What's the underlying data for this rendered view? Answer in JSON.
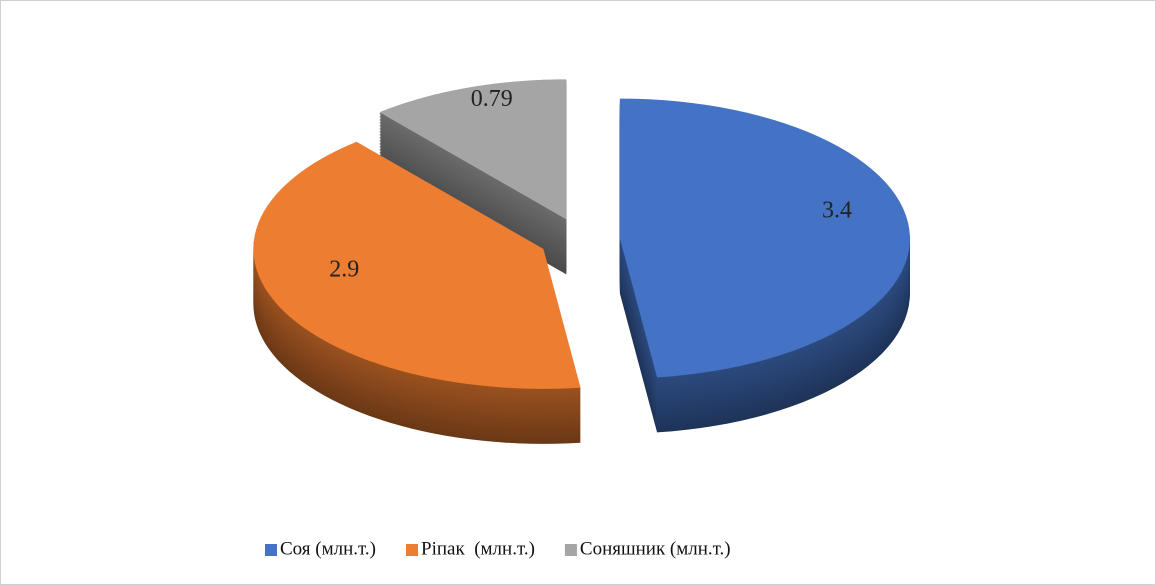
{
  "chart_data": {
    "type": "pie",
    "categories": [
      "Соя (млн.т.)",
      "Ріпак  (млн.т.)",
      "Соняшник (млн.т.)"
    ],
    "values": [
      3.4,
      2.9,
      0.79
    ],
    "colors": [
      "#4472c4",
      "#ed7d31",
      "#a5a5a5"
    ],
    "legend": "bottom"
  }
}
